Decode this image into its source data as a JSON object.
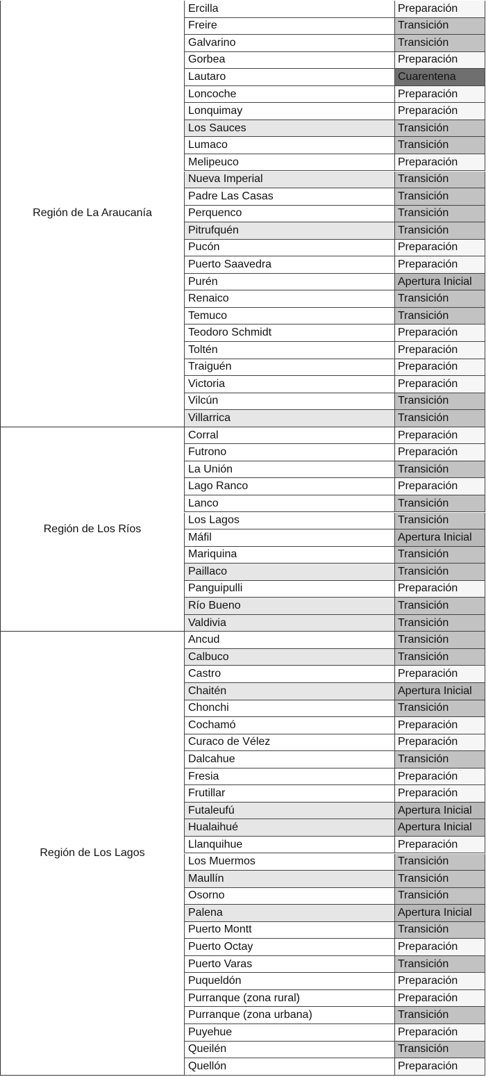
{
  "status_colors": {
    "Preparación": "#f6f6f6",
    "Transición": "#c2c2c2",
    "Apertura Inicial": "#b8b8b8",
    "Cuarentena": "#6f6f6f"
  },
  "shaded_commune_color": "#e6e6e6",
  "regions": [
    {
      "name": "Región de La Araucanía",
      "communes": [
        {
          "name": "Ercilla",
          "status": "Preparación"
        },
        {
          "name": "Freire",
          "status": "Transición"
        },
        {
          "name": "Galvarino",
          "status": "Transición"
        },
        {
          "name": "Gorbea",
          "status": "Preparación"
        },
        {
          "name": "Lautaro",
          "status": "Cuarentena"
        },
        {
          "name": "Loncoche",
          "status": "Preparación"
        },
        {
          "name": "Lonquimay",
          "status": "Preparación"
        },
        {
          "name": "Los Sauces",
          "status": "Transición",
          "shaded": true
        },
        {
          "name": "Lumaco",
          "status": "Transición"
        },
        {
          "name": "Melipeuco",
          "status": "Preparación"
        },
        {
          "name": "Nueva Imperial",
          "status": "Transición",
          "shaded": true
        },
        {
          "name": "Padre Las Casas",
          "status": "Transición"
        },
        {
          "name": "Perquenco",
          "status": "Transición"
        },
        {
          "name": "Pitrufquén",
          "status": "Transición",
          "shaded": true
        },
        {
          "name": "Pucón",
          "status": "Preparación"
        },
        {
          "name": "Puerto Saavedra",
          "status": "Preparación"
        },
        {
          "name": "Purén",
          "status": "Apertura Inicial"
        },
        {
          "name": "Renaico",
          "status": "Transición"
        },
        {
          "name": "Temuco",
          "status": "Transición"
        },
        {
          "name": "Teodoro Schmidt",
          "status": "Preparación"
        },
        {
          "name": "Toltén",
          "status": "Preparación"
        },
        {
          "name": "Traiguén",
          "status": "Preparación"
        },
        {
          "name": "Victoria",
          "status": "Preparación"
        },
        {
          "name": "Vilcún",
          "status": "Transición"
        },
        {
          "name": "Villarrica",
          "status": "Transición",
          "shaded": true
        }
      ]
    },
    {
      "name": "Región de Los Ríos",
      "communes": [
        {
          "name": "Corral",
          "status": "Preparación"
        },
        {
          "name": "Futrono",
          "status": "Preparación"
        },
        {
          "name": "La Unión",
          "status": "Transición"
        },
        {
          "name": "Lago Ranco",
          "status": "Preparación"
        },
        {
          "name": "Lanco",
          "status": "Transición"
        },
        {
          "name": "Los Lagos",
          "status": "Transición"
        },
        {
          "name": "Máfil",
          "status": "Apertura Inicial"
        },
        {
          "name": "Mariquina",
          "status": "Transición"
        },
        {
          "name": "Paillaco",
          "status": "Transición",
          "shaded": true
        },
        {
          "name": "Panguipulli",
          "status": "Preparación"
        },
        {
          "name": "Río Bueno",
          "status": "Transición",
          "shaded": true
        },
        {
          "name": "Valdivia",
          "status": "Transición",
          "shaded": true
        }
      ]
    },
    {
      "name": "Región de Los Lagos",
      "communes": [
        {
          "name": "Ancud",
          "status": "Transición"
        },
        {
          "name": "Calbuco",
          "status": "Transición",
          "shaded": true
        },
        {
          "name": "Castro",
          "status": "Preparación"
        },
        {
          "name": "Chaitén",
          "status": "Apertura Inicial",
          "shaded": true
        },
        {
          "name": "Chonchi",
          "status": "Transición"
        },
        {
          "name": "Cochamó",
          "status": "Preparación"
        },
        {
          "name": "Curaco de Vélez",
          "status": "Preparación"
        },
        {
          "name": "Dalcahue",
          "status": "Transición"
        },
        {
          "name": "Fresia",
          "status": "Preparación"
        },
        {
          "name": "Frutillar",
          "status": "Preparación"
        },
        {
          "name": "Futaleufú",
          "status": "Apertura Inicial",
          "shaded": true
        },
        {
          "name": "Hualaihué",
          "status": "Apertura Inicial",
          "shaded": true
        },
        {
          "name": "Llanquihue",
          "status": "Preparación"
        },
        {
          "name": "Los Muermos",
          "status": "Transición"
        },
        {
          "name": "Maullín",
          "status": "Transición",
          "shaded": true
        },
        {
          "name": "Osorno",
          "status": "Transición"
        },
        {
          "name": "Palena",
          "status": "Apertura Inicial",
          "shaded": true
        },
        {
          "name": "Puerto Montt",
          "status": "Transición"
        },
        {
          "name": "Puerto Octay",
          "status": "Preparación"
        },
        {
          "name": "Puerto Varas",
          "status": "Transición"
        },
        {
          "name": "Puqueldón",
          "status": "Preparación"
        },
        {
          "name": "Purranque (zona rural)",
          "status": "Preparación"
        },
        {
          "name": "Purranque (zona urbana)",
          "status": "Transición"
        },
        {
          "name": "Puyehue",
          "status": "Preparación"
        },
        {
          "name": "Queilén",
          "status": "Transición"
        },
        {
          "name": "Quellón",
          "status": "Preparación"
        }
      ]
    }
  ]
}
